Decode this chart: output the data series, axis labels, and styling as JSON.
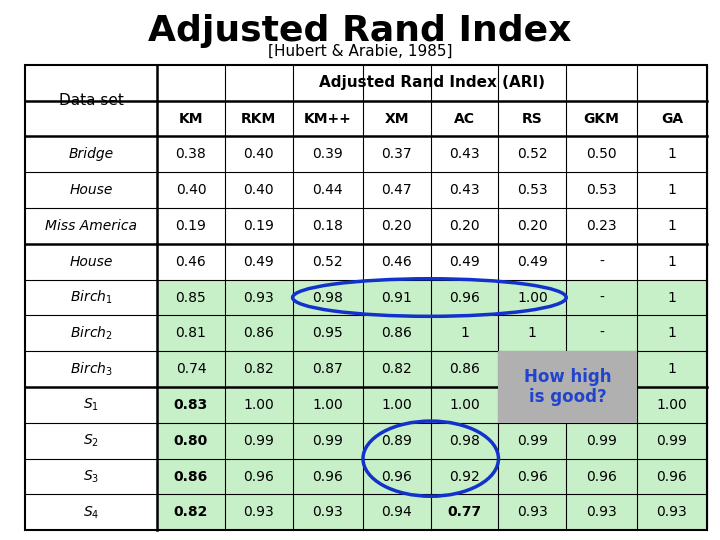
{
  "title": "Adjusted Rand Index",
  "subtitle": "[Hubert & Arabie, 1985]",
  "header_group": "Adjusted Rand Index (ARI)",
  "col_headers": [
    "KM",
    "RKM",
    "KM++",
    "XM",
    "AC",
    "RS",
    "GKM",
    "GA"
  ],
  "row_label_names": [
    "Bridge",
    "House",
    "Miss America",
    "House",
    "Birch1",
    "Birch2",
    "Birch3",
    "S1",
    "S2",
    "S3",
    "S4"
  ],
  "rows": [
    [
      "0.38",
      "0.40",
      "0.39",
      "0.37",
      "0.43",
      "0.52",
      "0.50",
      "1"
    ],
    [
      "0.40",
      "0.40",
      "0.44",
      "0.47",
      "0.43",
      "0.53",
      "0.53",
      "1"
    ],
    [
      "0.19",
      "0.19",
      "0.18",
      "0.20",
      "0.20",
      "0.20",
      "0.23",
      "1"
    ],
    [
      "0.46",
      "0.49",
      "0.52",
      "0.46",
      "0.49",
      "0.49",
      "-",
      "1"
    ],
    [
      "0.85",
      "0.93",
      "0.98",
      "0.91",
      "0.96",
      "1.00",
      "-",
      "1"
    ],
    [
      "0.81",
      "0.86",
      "0.95",
      "0.86",
      "1",
      "1",
      "-",
      "1"
    ],
    [
      "0.74",
      "0.82",
      "0.87",
      "0.82",
      "0.86",
      "",
      "",
      "1"
    ],
    [
      "0.83",
      "1.00",
      "1.00",
      "1.00",
      "1.00",
      "",
      "",
      "1.00"
    ],
    [
      "0.80",
      "0.99",
      "0.99",
      "0.89",
      "0.98",
      "0.99",
      "0.99",
      "0.99"
    ],
    [
      "0.86",
      "0.96",
      "0.96",
      "0.96",
      "0.92",
      "0.96",
      "0.96",
      "0.96"
    ],
    [
      "0.82",
      "0.93",
      "0.93",
      "0.94",
      "0.77",
      "0.93",
      "0.93",
      "0.93"
    ]
  ],
  "bold_km": [
    false,
    false,
    false,
    false,
    false,
    false,
    false,
    true,
    true,
    true,
    true
  ],
  "bold_special": [
    [
      10,
      4
    ]
  ],
  "green_color": "#c8f0c8",
  "gray_color": "#b0b0b0",
  "how_high_text": "How high\nis good?",
  "how_high_color": "#2244cc",
  "ellipse_color": "#1133cc"
}
